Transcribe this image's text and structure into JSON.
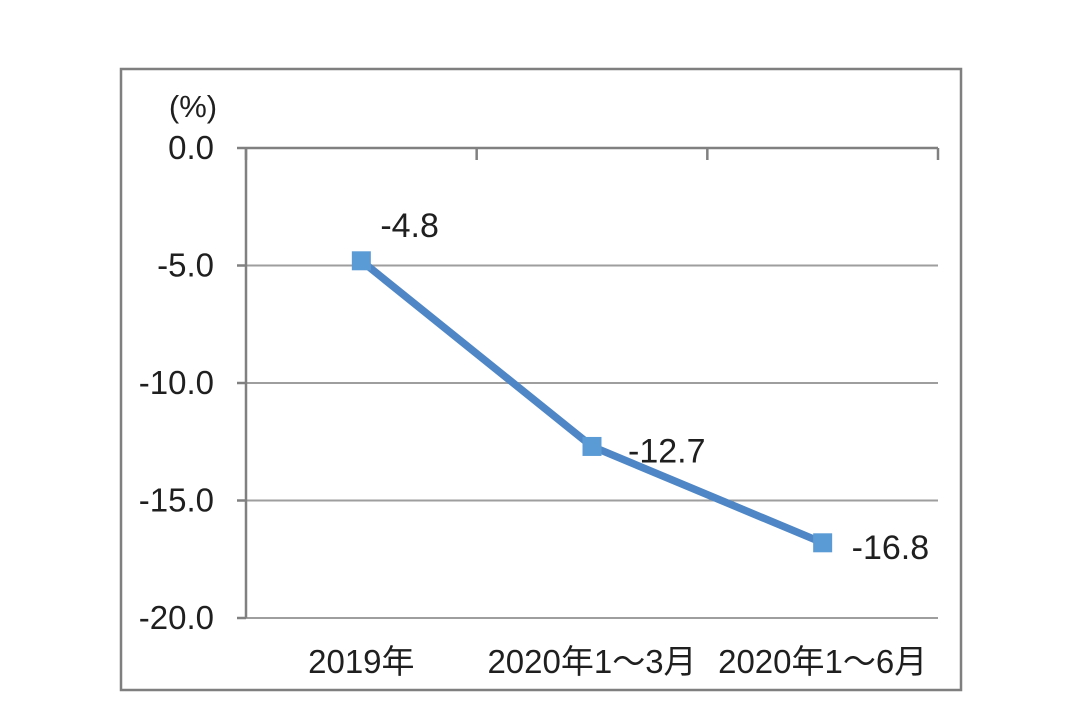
{
  "page": {
    "background": "#ffffff"
  },
  "chart_data": {
    "type": "line",
    "title": "",
    "ylabel": "(%)",
    "xlabel": "",
    "categories": [
      "2019年",
      "2020年1～3月",
      "2020年1～6月"
    ],
    "values": [
      -4.8,
      -12.7,
      -16.8
    ],
    "point_labels": [
      "-4.8",
      "-12.7",
      "-16.8"
    ],
    "ylim": [
      -20,
      0
    ],
    "yticks": {
      "values": [
        0,
        -5,
        -10,
        -15,
        -20
      ],
      "labels": [
        "0.0",
        "-5.0",
        "-10.0",
        "-15.0",
        "-20.0"
      ]
    },
    "grid": "horizontal",
    "legend": "none",
    "colors": {
      "line": "#4f87c6",
      "marker": "#5b9bd5",
      "grid": "#9e9e9e",
      "axis": "#808080",
      "frame": "#7f7f7f",
      "text": "#1f1f1f",
      "background": "#ffffff"
    }
  }
}
